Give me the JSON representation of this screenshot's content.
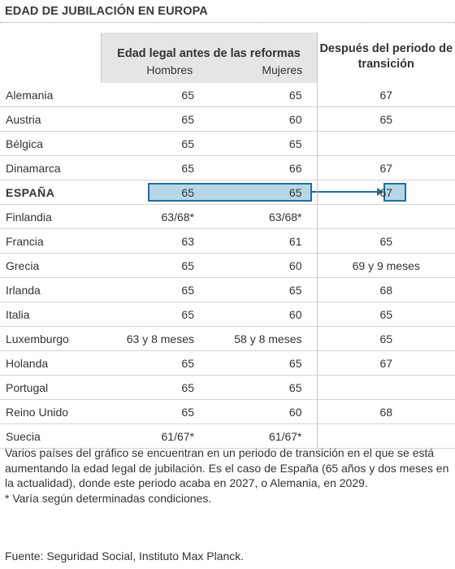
{
  "title": "EDAD DE JUBILACIÓN EN EUROPA",
  "chart_data": {
    "type": "table",
    "title": "EDAD DE JUBILACIÓN EN EUROPA",
    "headers": {
      "group_before": "Edad legal antes de las reformas",
      "group_after": "Después del periodo de transición",
      "men": "Hombres",
      "women": "Mujeres"
    },
    "rows": [
      {
        "country": "Alemania",
        "men": "65",
        "women": "65",
        "after": "67"
      },
      {
        "country": "Austria",
        "men": "65",
        "women": "60",
        "after": "65"
      },
      {
        "country": "Bélgica",
        "men": "65",
        "women": "65",
        "after": ""
      },
      {
        "country": "Dinamarca",
        "men": "65",
        "women": "66",
        "after": "67"
      },
      {
        "country": "ESPAÑA",
        "men": "65",
        "women": "65",
        "after": "67"
      },
      {
        "country": "Finlandia",
        "men": "63/68*",
        "women": "63/68*",
        "after": ""
      },
      {
        "country": "Francia",
        "men": "63",
        "women": "61",
        "after": "65"
      },
      {
        "country": "Grecia",
        "men": "65",
        "women": "60",
        "after": "69 y 9 meses"
      },
      {
        "country": "Irlanda",
        "men": "65",
        "women": "65",
        "after": "68"
      },
      {
        "country": "Italia",
        "men": "65",
        "women": "60",
        "after": "65"
      },
      {
        "country": "Luxemburgo",
        "men": "63 y 8 meses",
        "women": "58 y 8 meses",
        "after": "65"
      },
      {
        "country": "Holanda",
        "men": "65",
        "women": "65",
        "after": "67"
      },
      {
        "country": "Portugal",
        "men": "65",
        "women": "65",
        "after": ""
      },
      {
        "country": "Reino Unido",
        "men": "65",
        "women": "60",
        "after": "68"
      },
      {
        "country": "Suecia",
        "men": "61/67*",
        "women": "61/67*",
        "after": ""
      }
    ],
    "highlight_row": "ESPAÑA"
  },
  "colors": {
    "header_shade": "#e5e5e5",
    "highlight_fill": "#b7d6e8",
    "highlight_border": "#1f6e9c"
  },
  "notes": {
    "line1": "Varios países del gráfico se encuentran en un periodo de transición en el que se está aumentando la edad legal de jubilación. Es el caso de España (65 años y dos meses en la actualidad), donde este periodo acaba en 2027, o Alemania, en 2029.",
    "line2": "* Varía según determinadas condiciones."
  },
  "source": "Fuente: Seguridad Social, Instituto Max Planck."
}
